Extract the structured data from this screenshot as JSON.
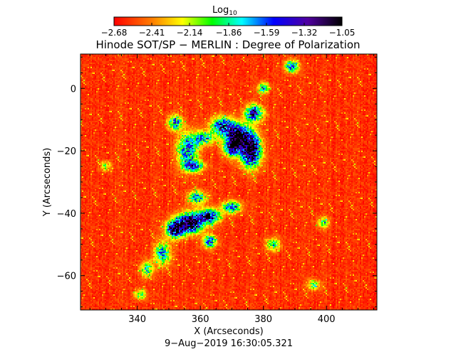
{
  "chart_data": {
    "type": "heatmap",
    "title": "Hinode SOT/SP − MERLIN : Degree of Polarization",
    "subtitle": "9−Aug−2019 16:30:05.321",
    "xlabel": "X (Arcseconds)",
    "ylabel": "Y (Arcseconds)",
    "xlim": [
      322,
      416
    ],
    "ylim": [
      -71,
      11
    ],
    "x_ticks": [
      340,
      360,
      380,
      400
    ],
    "x_tick_labels": [
      "340",
      "360",
      "380",
      "400"
    ],
    "y_ticks": [
      0,
      -20,
      -40,
      -60
    ],
    "y_tick_labels": [
      "0",
      "−20",
      "−40",
      "−60"
    ],
    "colorbar": {
      "label_base": "Log",
      "label_sub": "10",
      "min": -2.68,
      "max": -1.05,
      "ticks": [
        -2.68,
        -2.41,
        -2.14,
        -1.86,
        -1.59,
        -1.32,
        -1.05
      ],
      "tick_labels": [
        "−2.68",
        "−2.41",
        "−2.14",
        "−1.86",
        "−1.59",
        "−1.32",
        "−1.05"
      ],
      "colormap": "rainbow (red→yellow→green→cyan→blue→violet→black)"
    },
    "features": [
      {
        "x": 376,
        "y": -20,
        "sx": 2.2,
        "sy": 3.5,
        "amp": 1.15
      },
      {
        "x": 372,
        "y": -15,
        "sx": 2.6,
        "sy": 2.4,
        "amp": 0.95
      },
      {
        "x": 367,
        "y": -12,
        "sx": 2.5,
        "sy": 2.0,
        "amp": 0.75
      },
      {
        "x": 377,
        "y": -8,
        "sx": 2.0,
        "sy": 1.8,
        "amp": 0.8
      },
      {
        "x": 370,
        "y": -19,
        "sx": 1.8,
        "sy": 2.0,
        "amp": 0.8
      },
      {
        "x": 361,
        "y": -16,
        "sx": 2.4,
        "sy": 1.5,
        "amp": 0.55
      },
      {
        "x": 356,
        "y": -20,
        "sx": 2.2,
        "sy": 3.8,
        "amp": 0.65
      },
      {
        "x": 352,
        "y": -11,
        "sx": 1.6,
        "sy": 1.6,
        "amp": 0.65
      },
      {
        "x": 358,
        "y": -25,
        "sx": 2.2,
        "sy": 1.2,
        "amp": 0.6
      },
      {
        "x": 389,
        "y": 7,
        "sx": 1.5,
        "sy": 1.4,
        "amp": 0.65
      },
      {
        "x": 380,
        "y": 0,
        "sx": 1.2,
        "sy": 1.2,
        "amp": 0.55
      },
      {
        "x": 357,
        "y": -43,
        "sx": 2.6,
        "sy": 2.2,
        "amp": 1.1
      },
      {
        "x": 363,
        "y": -41,
        "sx": 2.2,
        "sy": 1.6,
        "amp": 0.85
      },
      {
        "x": 352,
        "y": -45,
        "sx": 2.0,
        "sy": 2.0,
        "amp": 0.95
      },
      {
        "x": 359,
        "y": -35,
        "sx": 2.0,
        "sy": 1.4,
        "amp": 0.6
      },
      {
        "x": 370,
        "y": -38,
        "sx": 2.0,
        "sy": 1.3,
        "amp": 0.7
      },
      {
        "x": 363,
        "y": -49,
        "sx": 1.4,
        "sy": 1.4,
        "amp": 0.7
      },
      {
        "x": 348,
        "y": -53,
        "sx": 1.8,
        "sy": 2.6,
        "amp": 0.55
      },
      {
        "x": 343,
        "y": -58,
        "sx": 1.4,
        "sy": 1.8,
        "amp": 0.45
      },
      {
        "x": 383,
        "y": -50,
        "sx": 1.6,
        "sy": 1.4,
        "amp": 0.45
      },
      {
        "x": 341,
        "y": -66,
        "sx": 1.4,
        "sy": 1.2,
        "amp": 0.4
      },
      {
        "x": 399,
        "y": -43,
        "sx": 1.4,
        "sy": 1.2,
        "amp": 0.4
      },
      {
        "x": 396,
        "y": -63,
        "sx": 1.4,
        "sy": 1.2,
        "amp": 0.4
      },
      {
        "x": 330,
        "y": -25,
        "sx": 1.2,
        "sy": 1.2,
        "amp": 0.35
      }
    ]
  }
}
